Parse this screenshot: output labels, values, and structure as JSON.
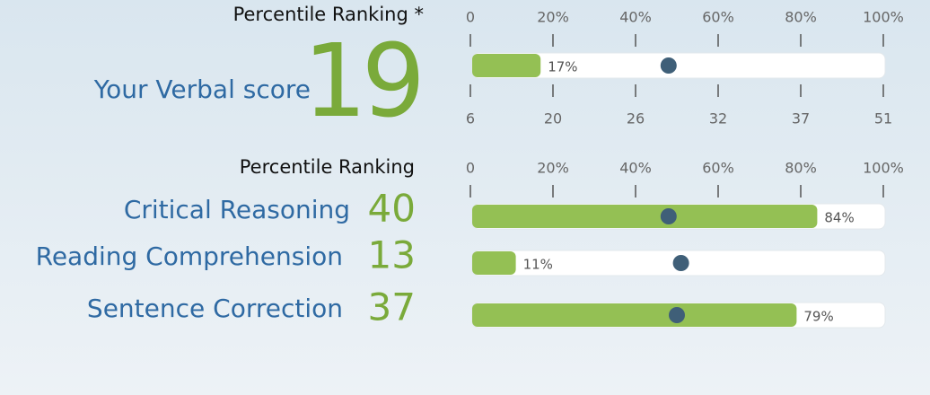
{
  "verbal": {
    "heading": "Percentile Ranking *",
    "title": "Your Verbal score",
    "score": 19,
    "percentile": 17,
    "percentile_label": "17%",
    "marker": 48,
    "ticks": [
      0,
      {
        "value": 20,
        "label": "20%"
      },
      {
        "value": 40,
        "label": "40%"
      },
      {
        "value": 60,
        "label": "60%"
      },
      {
        "value": 80,
        "label": "80%"
      },
      {
        "value": 100,
        "label": "100%"
      }
    ],
    "score_ticks": [
      6,
      20,
      26,
      32,
      37,
      51
    ]
  },
  "sections": {
    "heading": "Percentile Ranking",
    "ticks": [
      0,
      {
        "value": 20,
        "label": "20%"
      },
      {
        "value": 40,
        "label": "40%"
      },
      {
        "value": 60,
        "label": "60%"
      },
      {
        "value": 80,
        "label": "80%"
      },
      {
        "value": 100,
        "label": "100%"
      }
    ],
    "rows": [
      {
        "name": "Critical Reasoning",
        "score": 40,
        "percentile": 84,
        "percentile_label": "84%",
        "marker": 48
      },
      {
        "name": "Reading Comprehension",
        "score": 13,
        "percentile": 11,
        "percentile_label": "11%",
        "marker": 51
      },
      {
        "name": "Sentence Correction",
        "score": 37,
        "percentile": 79,
        "percentile_label": "79%",
        "marker": 50
      }
    ]
  }
}
